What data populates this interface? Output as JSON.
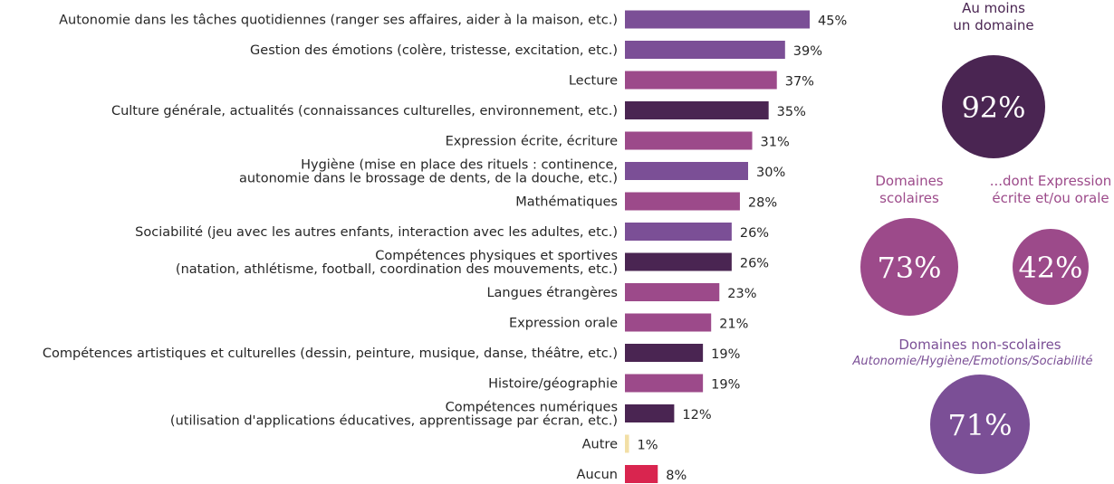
{
  "chart_data": {
    "type": "bar",
    "orientation": "horizontal",
    "categories": [
      [
        "Autonomie dans les tâches quotidiennes (ranger ses affaires, aider à la maison, etc.)"
      ],
      [
        "Gestion des émotions (colère, tristesse, excitation, etc.)"
      ],
      [
        "Lecture"
      ],
      [
        "Culture générale, actualités (connaissances culturelles, environnement, etc.)"
      ],
      [
        "Expression écrite, écriture"
      ],
      [
        "Hygiène (mise en place des rituels : continence,",
        "autonomie dans le brossage de dents, de la douche, etc.)"
      ],
      [
        "Mathématiques"
      ],
      [
        "Sociabilité (jeu avec les autres enfants, interaction avec les adultes, etc.)"
      ],
      [
        "Compétences physiques et sportives",
        "(natation, athlétisme, football, coordination des mouvements, etc.)"
      ],
      [
        "Langues étrangères"
      ],
      [
        "Expression orale"
      ],
      [
        "Compétences artistiques et culturelles (dessin, peinture, musique, danse, théâtre, etc.)"
      ],
      [
        "Histoire/géographie"
      ],
      [
        "Compétences numériques",
        "(utilisation d'applications éducatives, apprentissage par écran, etc.)"
      ],
      [
        "Autre"
      ],
      [
        "Aucun"
      ]
    ],
    "values": [
      45,
      39,
      37,
      35,
      31,
      30,
      28,
      26,
      26,
      23,
      21,
      19,
      19,
      12,
      1,
      8
    ],
    "value_labels": [
      "45%",
      "39%",
      "37%",
      "35%",
      "31%",
      "30%",
      "28%",
      "26%",
      "26%",
      "23%",
      "21%",
      "19%",
      "19%",
      "12%",
      "1%",
      "8%"
    ],
    "bar_colors": [
      "#7b4f96",
      "#7b4f96",
      "#9c4a8a",
      "#4a2552",
      "#9c4a8a",
      "#7b4f96",
      "#9c4a8a",
      "#7b4f96",
      "#4a2552",
      "#9c4a8a",
      "#9c4a8a",
      "#4a2552",
      "#9c4a8a",
      "#4a2552",
      "#f2dfa6",
      "#d9254f"
    ],
    "xlim": [
      0,
      45
    ],
    "grid": false,
    "title": "",
    "xlabel": "",
    "ylabel": ""
  },
  "summary": [
    {
      "title_lines": [
        "Au moins",
        "un domaine"
      ],
      "value": "92%",
      "fraction": 0.92,
      "color": "#4a2552",
      "title_color": "#4a2552"
    },
    {
      "title_lines": [
        "Domaines",
        "scolaires"
      ],
      "value": "73%",
      "fraction": 0.73,
      "color": "#9c4a8a",
      "title_color": "#9c4a8a"
    },
    {
      "title_lines": [
        "...dont Expression",
        "écrite et/ou orale"
      ],
      "value": "42%",
      "fraction": 0.42,
      "color": "#9c4a8a",
      "title_color": "#9c4a8a"
    },
    {
      "title_lines": [
        "Domaines non-scolaires"
      ],
      "subtitle": "Autonomie/Hygiène/Emotions/Sociabilité",
      "value": "71%",
      "fraction": 0.71,
      "color": "#7b4f96",
      "title_color": "#7b4f96"
    }
  ]
}
